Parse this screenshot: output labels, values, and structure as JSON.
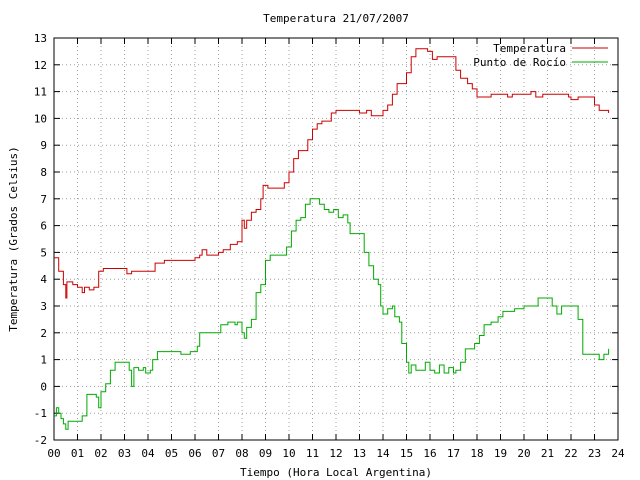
{
  "chart_data": {
    "type": "line",
    "title": "Temperatura 21/07/2007",
    "xlabel": "Tiempo (Hora Local Argentina)",
    "ylabel": "Temperatura (Grados Celsius)",
    "xlim": [
      0,
      24
    ],
    "ylim": [
      -2,
      13
    ],
    "grid": true,
    "legend_position": "top-right",
    "x_ticks": [
      "00",
      "01",
      "02",
      "03",
      "04",
      "05",
      "06",
      "07",
      "08",
      "09",
      "10",
      "11",
      "12",
      "13",
      "14",
      "15",
      "16",
      "17",
      "18",
      "19",
      "20",
      "21",
      "22",
      "23",
      "24"
    ],
    "y_ticks": [
      -2,
      -1,
      0,
      1,
      2,
      3,
      4,
      5,
      6,
      7,
      8,
      9,
      10,
      11,
      12,
      13
    ],
    "series": [
      {
        "name": "Temperatura",
        "color": "#cc0000",
        "points": [
          [
            0.0,
            4.8
          ],
          [
            0.2,
            4.3
          ],
          [
            0.4,
            3.8
          ],
          [
            0.5,
            3.3
          ],
          [
            0.55,
            3.9
          ],
          [
            0.8,
            3.8
          ],
          [
            1.0,
            3.7
          ],
          [
            1.2,
            3.5
          ],
          [
            1.3,
            3.7
          ],
          [
            1.5,
            3.6
          ],
          [
            1.7,
            3.7
          ],
          [
            1.9,
            4.3
          ],
          [
            2.1,
            4.4
          ],
          [
            2.5,
            4.4
          ],
          [
            3.0,
            4.4
          ],
          [
            3.1,
            4.2
          ],
          [
            3.3,
            4.3
          ],
          [
            3.6,
            4.3
          ],
          [
            4.1,
            4.3
          ],
          [
            4.3,
            4.6
          ],
          [
            4.7,
            4.7
          ],
          [
            5.0,
            4.7
          ],
          [
            5.5,
            4.7
          ],
          [
            6.0,
            4.8
          ],
          [
            6.2,
            4.9
          ],
          [
            6.3,
            5.1
          ],
          [
            6.5,
            4.9
          ],
          [
            7.0,
            5.0
          ],
          [
            7.2,
            5.1
          ],
          [
            7.5,
            5.3
          ],
          [
            7.8,
            5.4
          ],
          [
            8.0,
            6.2
          ],
          [
            8.1,
            5.9
          ],
          [
            8.2,
            6.2
          ],
          [
            8.4,
            6.5
          ],
          [
            8.6,
            6.6
          ],
          [
            8.8,
            7.0
          ],
          [
            8.9,
            7.5
          ],
          [
            9.1,
            7.4
          ],
          [
            9.3,
            7.4
          ],
          [
            9.5,
            7.4
          ],
          [
            9.8,
            7.6
          ],
          [
            10.0,
            8.0
          ],
          [
            10.2,
            8.5
          ],
          [
            10.4,
            8.8
          ],
          [
            10.6,
            8.8
          ],
          [
            10.8,
            9.2
          ],
          [
            11.0,
            9.6
          ],
          [
            11.2,
            9.8
          ],
          [
            11.4,
            9.9
          ],
          [
            11.6,
            9.9
          ],
          [
            11.8,
            10.2
          ],
          [
            12.0,
            10.3
          ],
          [
            12.4,
            10.3
          ],
          [
            12.8,
            10.3
          ],
          [
            13.0,
            10.2
          ],
          [
            13.3,
            10.3
          ],
          [
            13.5,
            10.1
          ],
          [
            13.8,
            10.1
          ],
          [
            14.0,
            10.3
          ],
          [
            14.2,
            10.5
          ],
          [
            14.4,
            10.9
          ],
          [
            14.6,
            11.3
          ],
          [
            14.8,
            11.3
          ],
          [
            15.0,
            11.7
          ],
          [
            15.2,
            12.3
          ],
          [
            15.4,
            12.6
          ],
          [
            15.7,
            12.6
          ],
          [
            15.9,
            12.5
          ],
          [
            16.1,
            12.2
          ],
          [
            16.3,
            12.3
          ],
          [
            16.6,
            12.3
          ],
          [
            16.9,
            12.3
          ],
          [
            17.1,
            11.8
          ],
          [
            17.3,
            11.5
          ],
          [
            17.6,
            11.3
          ],
          [
            17.8,
            11.1
          ],
          [
            18.0,
            10.8
          ],
          [
            18.3,
            10.8
          ],
          [
            18.6,
            10.9
          ],
          [
            18.9,
            10.9
          ],
          [
            19.1,
            10.9
          ],
          [
            19.3,
            10.8
          ],
          [
            19.5,
            10.9
          ],
          [
            19.8,
            10.9
          ],
          [
            20.0,
            10.9
          ],
          [
            20.3,
            11.0
          ],
          [
            20.5,
            10.8
          ],
          [
            20.8,
            10.9
          ],
          [
            21.0,
            10.9
          ],
          [
            21.3,
            10.9
          ],
          [
            21.6,
            10.9
          ],
          [
            21.9,
            10.8
          ],
          [
            22.0,
            10.7
          ],
          [
            22.3,
            10.8
          ],
          [
            22.7,
            10.8
          ],
          [
            23.0,
            10.5
          ],
          [
            23.2,
            10.3
          ],
          [
            23.5,
            10.3
          ],
          [
            23.6,
            10.2
          ]
        ]
      },
      {
        "name": "Punto de Rocío",
        "color": "#00aa00",
        "points": [
          [
            0.0,
            -1.1
          ],
          [
            0.1,
            -0.8
          ],
          [
            0.2,
            -1.0
          ],
          [
            0.3,
            -1.2
          ],
          [
            0.4,
            -1.4
          ],
          [
            0.5,
            -1.6
          ],
          [
            0.6,
            -1.3
          ],
          [
            0.8,
            -1.3
          ],
          [
            1.0,
            -1.3
          ],
          [
            1.2,
            -1.1
          ],
          [
            1.4,
            -0.3
          ],
          [
            1.6,
            -0.3
          ],
          [
            1.8,
            -0.4
          ],
          [
            1.9,
            -0.8
          ],
          [
            2.0,
            -0.2
          ],
          [
            2.2,
            0.1
          ],
          [
            2.4,
            0.6
          ],
          [
            2.6,
            0.9
          ],
          [
            2.8,
            0.9
          ],
          [
            3.0,
            0.9
          ],
          [
            3.2,
            0.6
          ],
          [
            3.3,
            0.0
          ],
          [
            3.4,
            0.7
          ],
          [
            3.6,
            0.6
          ],
          [
            3.8,
            0.7
          ],
          [
            3.9,
            0.5
          ],
          [
            4.1,
            0.6
          ],
          [
            4.2,
            1.0
          ],
          [
            4.4,
            1.3
          ],
          [
            4.6,
            1.3
          ],
          [
            4.9,
            1.3
          ],
          [
            5.1,
            1.3
          ],
          [
            5.4,
            1.2
          ],
          [
            5.8,
            1.3
          ],
          [
            6.0,
            1.3
          ],
          [
            6.1,
            1.5
          ],
          [
            6.2,
            2.0
          ],
          [
            6.5,
            2.0
          ],
          [
            6.8,
            2.0
          ],
          [
            7.0,
            2.0
          ],
          [
            7.1,
            2.3
          ],
          [
            7.4,
            2.4
          ],
          [
            7.7,
            2.3
          ],
          [
            7.8,
            2.4
          ],
          [
            8.0,
            2.0
          ],
          [
            8.1,
            1.8
          ],
          [
            8.2,
            2.2
          ],
          [
            8.4,
            2.5
          ],
          [
            8.6,
            3.5
          ],
          [
            8.8,
            3.8
          ],
          [
            9.0,
            4.7
          ],
          [
            9.2,
            4.9
          ],
          [
            9.5,
            4.9
          ],
          [
            9.7,
            4.9
          ],
          [
            9.9,
            5.2
          ],
          [
            10.1,
            5.8
          ],
          [
            10.3,
            6.2
          ],
          [
            10.5,
            6.3
          ],
          [
            10.7,
            6.8
          ],
          [
            10.9,
            7.0
          ],
          [
            11.1,
            7.0
          ],
          [
            11.3,
            6.8
          ],
          [
            11.5,
            6.6
          ],
          [
            11.7,
            6.5
          ],
          [
            11.9,
            6.6
          ],
          [
            12.1,
            6.3
          ],
          [
            12.3,
            6.4
          ],
          [
            12.5,
            6.1
          ],
          [
            12.6,
            5.7
          ],
          [
            12.9,
            5.7
          ],
          [
            13.1,
            5.7
          ],
          [
            13.2,
            5.0
          ],
          [
            13.4,
            4.5
          ],
          [
            13.6,
            4.0
          ],
          [
            13.8,
            3.8
          ],
          [
            13.9,
            3.0
          ],
          [
            14.0,
            2.7
          ],
          [
            14.2,
            2.9
          ],
          [
            14.4,
            3.0
          ],
          [
            14.5,
            2.6
          ],
          [
            14.7,
            2.4
          ],
          [
            14.8,
            1.6
          ],
          [
            15.0,
            0.9
          ],
          [
            15.1,
            0.5
          ],
          [
            15.2,
            0.8
          ],
          [
            15.4,
            0.6
          ],
          [
            15.6,
            0.6
          ],
          [
            15.8,
            0.9
          ],
          [
            16.0,
            0.6
          ],
          [
            16.2,
            0.5
          ],
          [
            16.4,
            0.8
          ],
          [
            16.6,
            0.5
          ],
          [
            16.8,
            0.7
          ],
          [
            17.0,
            0.5
          ],
          [
            17.1,
            0.6
          ],
          [
            17.3,
            0.9
          ],
          [
            17.5,
            1.4
          ],
          [
            17.7,
            1.4
          ],
          [
            17.9,
            1.6
          ],
          [
            18.1,
            1.9
          ],
          [
            18.3,
            2.3
          ],
          [
            18.6,
            2.4
          ],
          [
            18.9,
            2.6
          ],
          [
            19.1,
            2.8
          ],
          [
            19.4,
            2.8
          ],
          [
            19.6,
            2.9
          ],
          [
            19.8,
            2.9
          ],
          [
            20.0,
            3.0
          ],
          [
            20.2,
            3.0
          ],
          [
            20.4,
            3.0
          ],
          [
            20.6,
            3.3
          ],
          [
            20.8,
            3.3
          ],
          [
            21.0,
            3.3
          ],
          [
            21.2,
            3.0
          ],
          [
            21.4,
            2.7
          ],
          [
            21.6,
            3.0
          ],
          [
            21.8,
            3.0
          ],
          [
            22.0,
            3.0
          ],
          [
            22.2,
            3.0
          ],
          [
            22.3,
            2.5
          ],
          [
            22.5,
            1.2
          ],
          [
            22.8,
            1.2
          ],
          [
            23.0,
            1.2
          ],
          [
            23.2,
            1.0
          ],
          [
            23.4,
            1.2
          ],
          [
            23.6,
            1.4
          ]
        ]
      }
    ]
  }
}
